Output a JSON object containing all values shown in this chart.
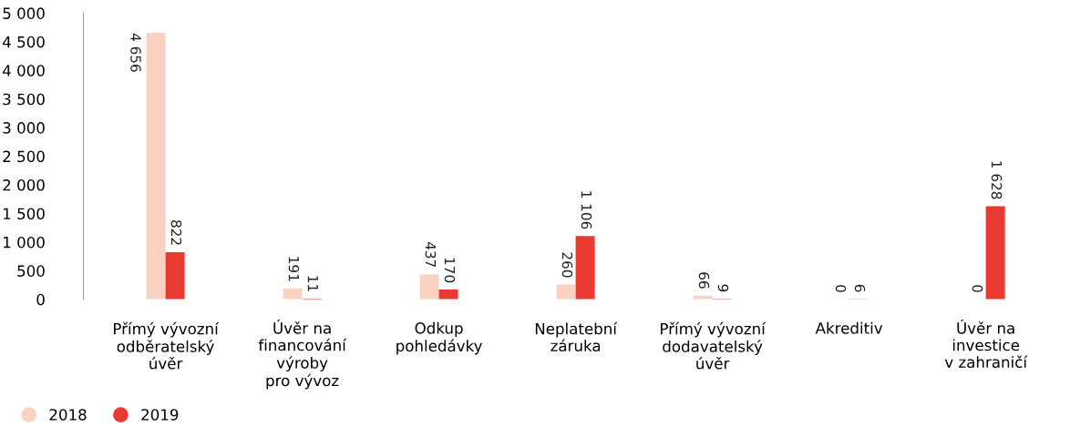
{
  "chart_data": {
    "type": "bar",
    "categories": [
      "Přímý vývozní\nodběratelský\núvěr",
      "Úvěr na\nfinancování\nvýroby\npro vývoz",
      "Odkup\npohledávky",
      "Neplatební\nzáruka",
      "Přímý vývozní\ndodavatelský\núvěr",
      "Akreditiv",
      "Úvěr na\ninvestice\nv zahraničí"
    ],
    "series": [
      {
        "name": "2018",
        "color": "#fad2c2",
        "values": [
          4656,
          191,
          437,
          260,
          66,
          0,
          0
        ],
        "value_labels": [
          "4 656",
          "191",
          "437",
          "260",
          "66",
          "0",
          "0"
        ]
      },
      {
        "name": "2019",
        "color": "#e83a30",
        "values": [
          822,
          11,
          170,
          1106,
          9,
          6,
          1628
        ],
        "value_labels": [
          "822",
          "11",
          "170",
          "1 106",
          "9",
          "6",
          "1 628"
        ]
      }
    ],
    "ylim": [
      0,
      5000
    ],
    "yticks": [
      0,
      500,
      {
        "value": 1000,
        "label": "1 000"
      },
      {
        "value": 1500,
        "label": "1 500"
      },
      {
        "value": 2000,
        "label": "2 000"
      },
      {
        "value": 2500,
        "label": "2 500"
      },
      {
        "value": 3000,
        "label": "3 000"
      },
      {
        "value": 3500,
        "label": "3 500"
      },
      {
        "value": 4000,
        "label": "4 000"
      },
      {
        "value": 4500,
        "label": "4 500"
      },
      {
        "value": 5000,
        "label": "5 000"
      }
    ],
    "grid": false,
    "legend": "bottom left"
  }
}
